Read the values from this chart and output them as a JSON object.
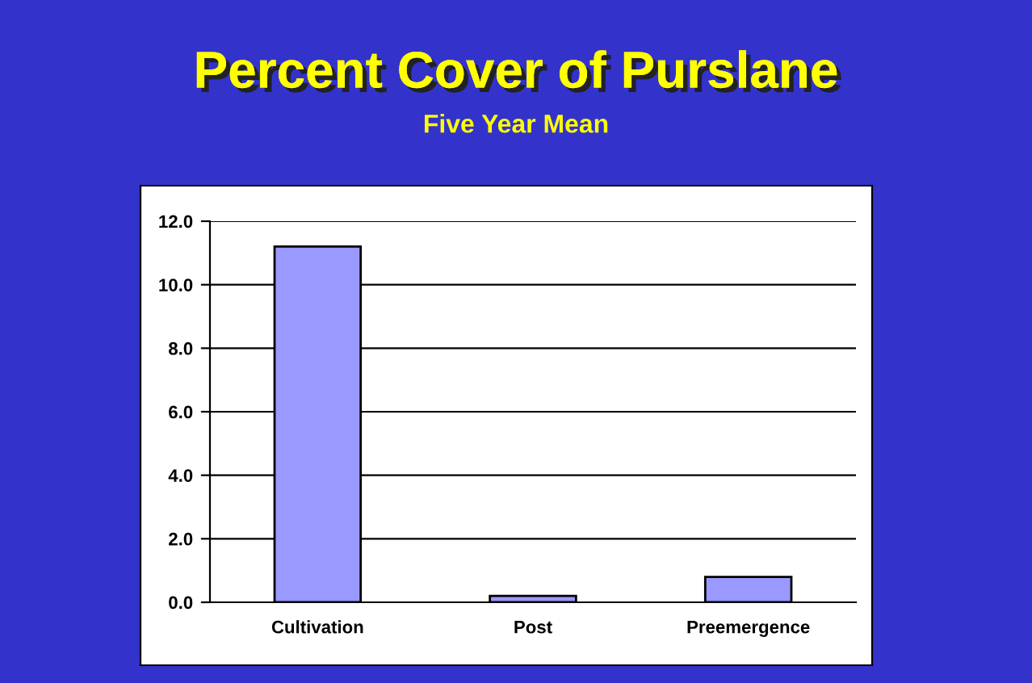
{
  "chart_data": {
    "type": "bar",
    "title": "Percent Cover of Purslane",
    "subtitle": "Five Year Mean",
    "categories": [
      "Cultivation",
      "Post",
      "Preemergence"
    ],
    "values": [
      11.2,
      0.2,
      0.8
    ],
    "color": "#9999ff",
    "ylim": [
      0,
      12
    ],
    "yticks": [
      {
        "value": 0,
        "label": "0.0"
      },
      {
        "value": 2,
        "label": "2.0"
      },
      {
        "value": 4,
        "label": "4.0"
      },
      {
        "value": 6,
        "label": "6.0"
      },
      {
        "value": 8,
        "label": "8.0"
      },
      {
        "value": 10,
        "label": "10.0"
      },
      {
        "value": 12,
        "label": "12.0"
      }
    ],
    "grid": "y"
  }
}
